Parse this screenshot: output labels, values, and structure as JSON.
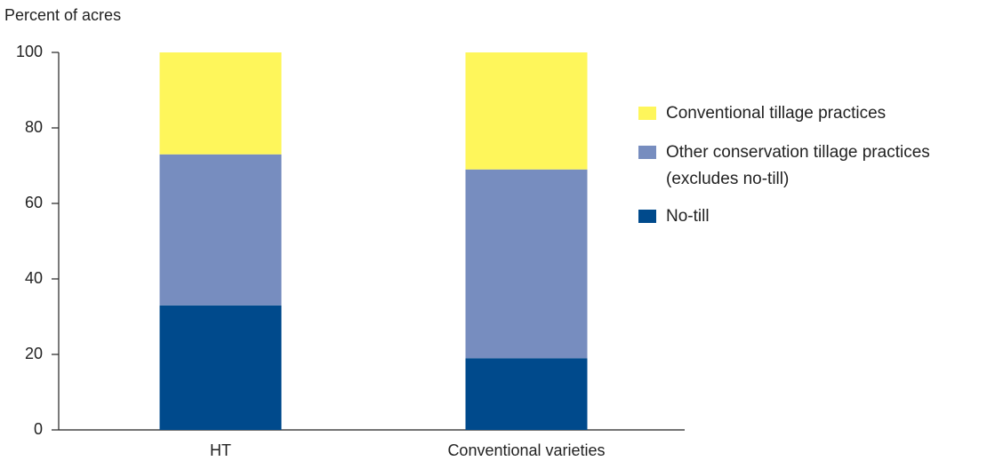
{
  "chart_data": {
    "type": "stacked_bar",
    "y_label": "Percent of acres",
    "categories": [
      "HT",
      "Conventional varieties"
    ],
    "series": [
      {
        "name": "No-till",
        "color": "#004a8c",
        "values": [
          33,
          19
        ]
      },
      {
        "name": "Other conservation tillage practices\n(excludes no-till)",
        "color": "#778dbf",
        "values": [
          40,
          50
        ]
      },
      {
        "name": "Conventional tillage practices",
        "color": "#fef65b",
        "values": [
          27,
          31
        ]
      }
    ],
    "ylim": [
      0,
      100
    ],
    "yticks": [
      0,
      20,
      40,
      60,
      80,
      100
    ],
    "legend": "right"
  }
}
